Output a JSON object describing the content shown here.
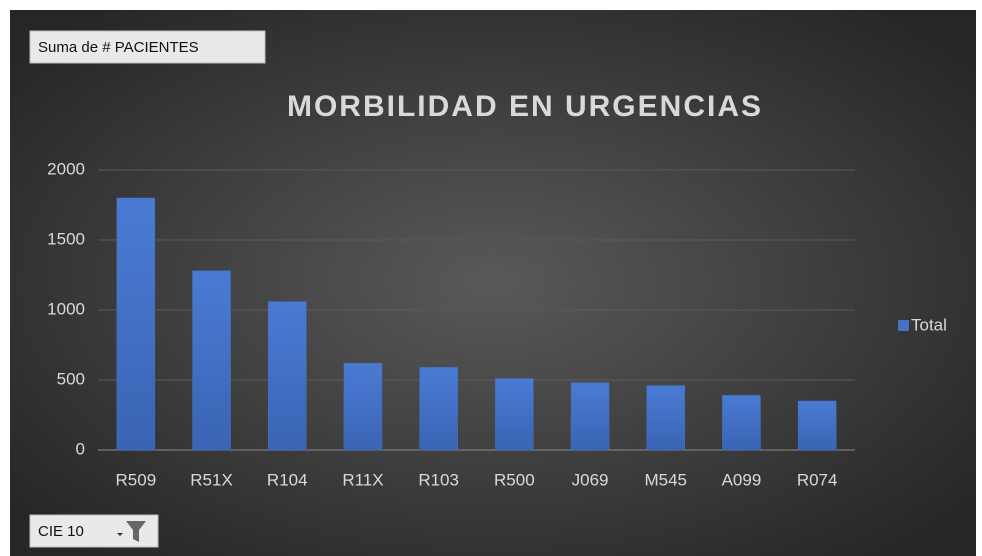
{
  "chart_data": {
    "type": "bar",
    "title": "MORBILIDAD EN URGENCIAS",
    "value_field": "Suma de # PACIENTES",
    "axis_field": "CIE 10",
    "categories": [
      "R509",
      "R51X",
      "R104",
      "R11X",
      "R103",
      "R500",
      "J069",
      "M545",
      "A099",
      "R074"
    ],
    "series": [
      {
        "name": "Total",
        "color": "#4472c4",
        "values": [
          1800,
          1280,
          1060,
          620,
          590,
          510,
          480,
          460,
          390,
          350
        ]
      }
    ],
    "ylim": [
      0,
      2000
    ],
    "yticks": [
      0,
      500,
      1000,
      1500,
      2000
    ],
    "grid": true,
    "legend": "right"
  }
}
